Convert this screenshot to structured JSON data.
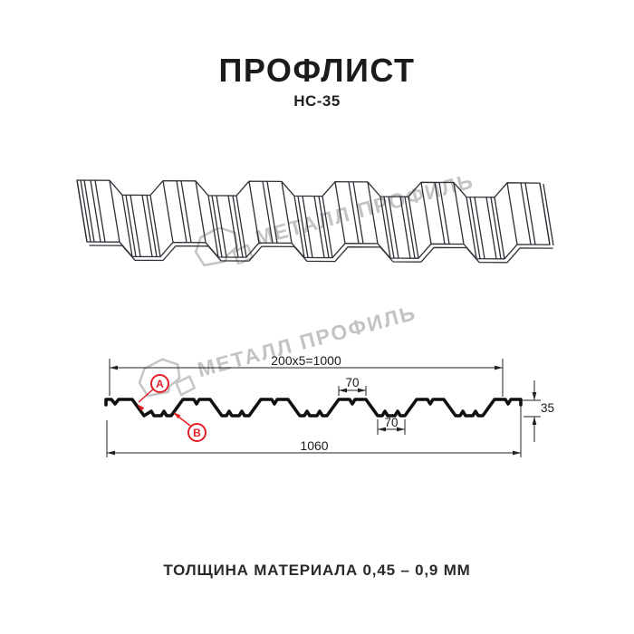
{
  "header": {
    "title": "ПРОФЛИСТ",
    "subtitle": "НС-35"
  },
  "watermark": {
    "text": "МЕТАЛЛ ПРОФИЛЬ"
  },
  "dims": {
    "working_width": "200x5=1000",
    "crest_top": "70",
    "valley_bottom": "70",
    "overall_width": "1060",
    "height": "35"
  },
  "callouts": {
    "a": "А",
    "b": "В"
  },
  "footer": {
    "text": "ТОЛЩИНА МАТЕРИАЛА 0,45 – 0,9 ММ"
  },
  "colors": {
    "accent_red": "#e31e24",
    "watermark_gray": "#c3c3c3",
    "line_dark": "#2e2e36"
  }
}
